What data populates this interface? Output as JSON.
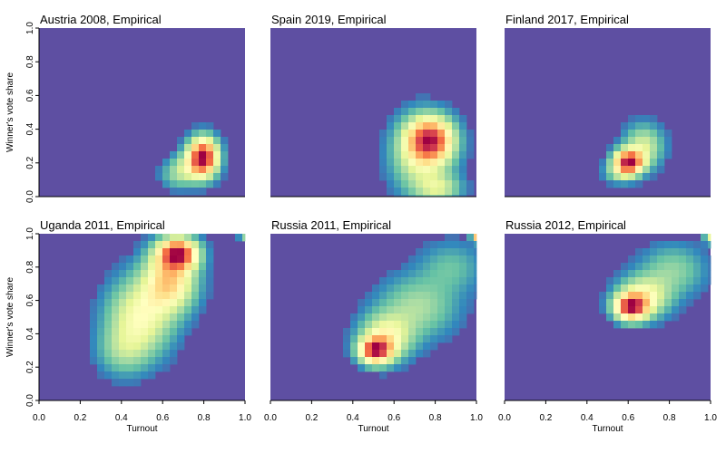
{
  "chart_data": [
    {
      "type": "heatmap",
      "title": "Austria 2008, Empirical",
      "xlabel": "",
      "ylabel": "Winner's vote share",
      "xlim": [
        0,
        1
      ],
      "ylim": [
        0,
        1
      ],
      "xticks": [],
      "yticks": [
        "0.0",
        "0.2",
        "0.4",
        "0.6",
        "0.8",
        "1.0"
      ],
      "density_peaks": [
        {
          "x": 0.78,
          "y": 0.26,
          "sx": 0.045,
          "sy": 0.07,
          "w": 1.0
        },
        {
          "x": 0.72,
          "y": 0.2,
          "sx": 0.06,
          "sy": 0.06,
          "w": 0.25
        },
        {
          "x": 0.65,
          "y": 0.15,
          "sx": 0.05,
          "sy": 0.05,
          "w": 0.12
        }
      ]
    },
    {
      "type": "heatmap",
      "title": "Spain 2019, Empirical",
      "xlabel": "",
      "ylabel": "",
      "xlim": [
        0,
        1
      ],
      "ylim": [
        0,
        1
      ],
      "xticks": [],
      "yticks": [],
      "density_peaks": [
        {
          "x": 0.76,
          "y": 0.36,
          "sx": 0.07,
          "sy": 0.08,
          "w": 1.0
        },
        {
          "x": 0.72,
          "y": 0.27,
          "sx": 0.09,
          "sy": 0.14,
          "w": 0.45
        },
        {
          "x": 0.8,
          "y": 0.08,
          "sx": 0.07,
          "sy": 0.05,
          "w": 0.3
        }
      ]
    },
    {
      "type": "heatmap",
      "title": "Finland 2017, Empirical",
      "xlabel": "",
      "ylabel": "",
      "xlim": [
        0,
        1
      ],
      "ylim": [
        0,
        1
      ],
      "xticks": [],
      "yticks": [],
      "density_peaks": [
        {
          "x": 0.59,
          "y": 0.23,
          "sx": 0.045,
          "sy": 0.045,
          "w": 1.0
        },
        {
          "x": 0.66,
          "y": 0.32,
          "sx": 0.06,
          "sy": 0.08,
          "w": 0.3
        },
        {
          "x": 0.55,
          "y": 0.17,
          "sx": 0.05,
          "sy": 0.04,
          "w": 0.2
        }
      ]
    },
    {
      "type": "heatmap",
      "title": "Uganda 2011, Empirical",
      "xlabel": "Turnout",
      "ylabel": "Winner's vote share",
      "xlim": [
        0,
        1
      ],
      "ylim": [
        0,
        1
      ],
      "xticks": [
        "0.0",
        "0.2",
        "0.4",
        "0.6",
        "0.8",
        "1.0"
      ],
      "yticks": [
        "0.0",
        "0.2",
        "0.4",
        "0.6",
        "0.8",
        "1.0"
      ],
      "density_peaks": [
        {
          "x": 0.66,
          "y": 0.88,
          "sx": 0.06,
          "sy": 0.06,
          "w": 1.0
        },
        {
          "x": 0.62,
          "y": 0.72,
          "sx": 0.08,
          "sy": 0.12,
          "w": 0.6
        },
        {
          "x": 0.48,
          "y": 0.5,
          "sx": 0.1,
          "sy": 0.15,
          "w": 0.42
        },
        {
          "x": 0.4,
          "y": 0.3,
          "sx": 0.08,
          "sy": 0.1,
          "w": 0.18
        },
        {
          "x": 0.98,
          "y": 0.98,
          "sx": 0.02,
          "sy": 0.02,
          "w": 0.2
        }
      ]
    },
    {
      "type": "heatmap",
      "title": "Russia 2011, Empirical",
      "xlabel": "Turnout",
      "ylabel": "",
      "xlim": [
        0,
        1
      ],
      "ylim": [
        0,
        1
      ],
      "xticks": [
        "0.0",
        "0.2",
        "0.4",
        "0.6",
        "0.8",
        "1.0"
      ],
      "yticks": [],
      "density_peaks": [
        {
          "x": 0.5,
          "y": 0.3,
          "sx": 0.05,
          "sy": 0.05,
          "w": 1.0
        },
        {
          "x": 0.55,
          "y": 0.38,
          "sx": 0.08,
          "sy": 0.09,
          "w": 0.45
        },
        {
          "x": 0.7,
          "y": 0.56,
          "sx": 0.12,
          "sy": 0.12,
          "w": 0.24
        },
        {
          "x": 0.86,
          "y": 0.8,
          "sx": 0.1,
          "sy": 0.1,
          "w": 0.14
        },
        {
          "x": 0.99,
          "y": 0.98,
          "sx": 0.02,
          "sy": 0.02,
          "w": 0.7
        }
      ]
    },
    {
      "type": "heatmap",
      "title": "Russia 2012, Empirical",
      "xlabel": "Turnout",
      "ylabel": "",
      "xlim": [
        0,
        1
      ],
      "ylim": [
        0,
        1
      ],
      "xticks": [
        "0.0",
        "0.2",
        "0.4",
        "0.6",
        "0.8",
        "1.0"
      ],
      "yticks": [],
      "density_peaks": [
        {
          "x": 0.6,
          "y": 0.56,
          "sx": 0.05,
          "sy": 0.05,
          "w": 1.0
        },
        {
          "x": 0.66,
          "y": 0.62,
          "sx": 0.08,
          "sy": 0.08,
          "w": 0.45
        },
        {
          "x": 0.8,
          "y": 0.78,
          "sx": 0.1,
          "sy": 0.1,
          "w": 0.2
        },
        {
          "x": 0.98,
          "y": 0.97,
          "sx": 0.02,
          "sy": 0.02,
          "w": 0.4
        }
      ]
    }
  ],
  "colors": {
    "background": "#5E4FA2",
    "ramp": [
      "#5E4FA2",
      "#3288BD",
      "#66C2A5",
      "#ABDDA4",
      "#E6F598",
      "#FFFFBF",
      "#FEE08B",
      "#FDAE61",
      "#F46D43",
      "#D53E4F",
      "#9E0142"
    ]
  }
}
